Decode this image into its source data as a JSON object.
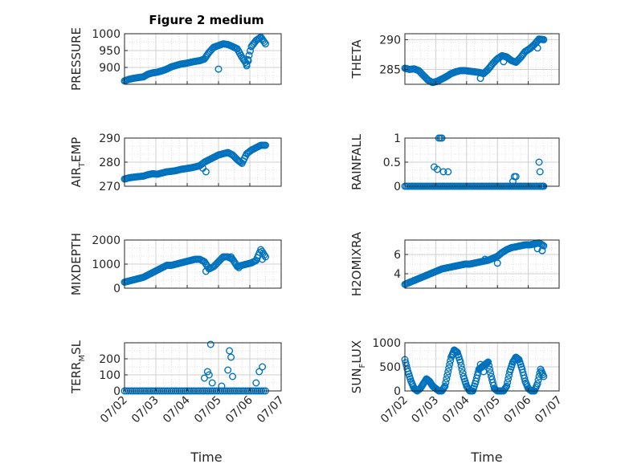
{
  "figure_title": "Figure 2 medium",
  "x_axis_label": "Time",
  "x_tick_labels": [
    "07/02",
    "07/03",
    "07/04",
    "07/05",
    "07/06",
    "07/07"
  ],
  "colors": {
    "marker": "#0072BD",
    "axis": "#262626",
    "grid": "#d9d9d9"
  },
  "chart_data": [
    {
      "type": "scatter",
      "title": "Figure 2 medium",
      "ylabel": "PRESSURE",
      "ylim": [
        850,
        1000
      ],
      "yticks": [
        900,
        950,
        1000
      ],
      "xticks": [
        0,
        1,
        2,
        3,
        4,
        5
      ],
      "grid": true,
      "x": [
        0.0,
        0.15,
        0.3,
        0.45,
        0.6,
        0.75,
        0.9,
        1.05,
        1.2,
        1.35,
        1.5,
        1.65,
        1.8,
        1.95,
        2.1,
        2.25,
        2.4,
        2.55,
        2.7,
        2.85,
        3.0,
        3.15,
        3.3,
        3.45,
        3.6,
        3.75,
        3.9,
        4.05,
        4.2,
        4.35,
        4.5
      ],
      "y": [
        860,
        865,
        868,
        870,
        872,
        880,
        884,
        886,
        890,
        895,
        902,
        906,
        910,
        912,
        915,
        918,
        920,
        925,
        945,
        960,
        965,
        970,
        968,
        962,
        955,
        930,
        910,
        962,
        980,
        990,
        970
      ],
      "y_dev": [
        {
          "x": 3.0,
          "y": 895
        },
        {
          "x": 3.9,
          "y": 905
        },
        {
          "x": 3.95,
          "y": 920
        }
      ]
    },
    {
      "type": "scatter",
      "title": "",
      "ylabel": "THETA",
      "ylim": [
        282.5,
        291
      ],
      "yticks": [
        285,
        290
      ],
      "xticks": [
        0,
        1,
        2,
        3,
        4,
        5
      ],
      "grid": true,
      "x": [
        0.0,
        0.15,
        0.3,
        0.45,
        0.6,
        0.75,
        0.9,
        1.05,
        1.2,
        1.35,
        1.5,
        1.65,
        1.8,
        1.95,
        2.1,
        2.25,
        2.4,
        2.55,
        2.7,
        2.85,
        3.0,
        3.15,
        3.3,
        3.45,
        3.6,
        3.75,
        3.9,
        4.05,
        4.2,
        4.35,
        4.5
      ],
      "y": [
        285.2,
        285.0,
        285.1,
        284.8,
        284.0,
        283.2,
        282.8,
        283.0,
        283.4,
        283.8,
        284.3,
        284.6,
        284.8,
        284.8,
        284.7,
        284.6,
        284.5,
        284.3,
        285.0,
        286.0,
        286.8,
        287.3,
        287.1,
        286.5,
        286.2,
        287.0,
        288.0,
        288.5,
        289.2,
        290.1,
        290.0
      ],
      "y_dev": [
        {
          "x": 2.45,
          "y": 283.5
        },
        {
          "x": 3.2,
          "y": 286.3
        },
        {
          "x": 4.3,
          "y": 288.6
        }
      ]
    },
    {
      "type": "scatter",
      "title": "",
      "ylabel": "AIR_TEMP",
      "ylim": [
        270,
        290
      ],
      "yticks": [
        270,
        280,
        290
      ],
      "xticks": [
        0,
        1,
        2,
        3,
        4,
        5
      ],
      "grid": true,
      "x": [
        0.0,
        0.15,
        0.3,
        0.45,
        0.6,
        0.75,
        0.9,
        1.05,
        1.2,
        1.35,
        1.5,
        1.65,
        1.8,
        1.95,
        2.1,
        2.25,
        2.4,
        2.55,
        2.7,
        2.85,
        3.0,
        3.15,
        3.3,
        3.45,
        3.6,
        3.75,
        3.9,
        4.05,
        4.2,
        4.35,
        4.5
      ],
      "y": [
        273,
        273.5,
        273.8,
        274,
        274.2,
        274.8,
        275.2,
        275.0,
        275.5,
        276.0,
        276.2,
        276.5,
        277.0,
        277.3,
        277.6,
        278.0,
        278.5,
        280.0,
        281.0,
        282.0,
        283.0,
        283.5,
        284.0,
        283.0,
        281.0,
        279.5,
        283.5,
        285.0,
        286.0,
        287.0,
        287.0
      ],
      "y_dev": [
        {
          "x": 2.5,
          "y": 277.5
        },
        {
          "x": 2.6,
          "y": 276.0
        },
        {
          "x": 3.65,
          "y": 280.5
        }
      ]
    },
    {
      "type": "scatter",
      "title": "",
      "ylabel": "RAINFALL",
      "ylim": [
        0,
        1
      ],
      "yticks": [
        0,
        0.5,
        1
      ],
      "xticks": [
        0,
        1,
        2,
        3,
        4,
        5
      ],
      "grid": true,
      "x": [
        0.0,
        0.2,
        0.4,
        0.6,
        0.8,
        1.0,
        1.2,
        1.4,
        1.6,
        1.8,
        2.0,
        2.2,
        2.4,
        2.6,
        2.8,
        3.0,
        3.2,
        3.4,
        3.6,
        3.8,
        4.0,
        4.2,
        4.4,
        4.5
      ],
      "y": [
        0,
        0,
        0,
        0,
        0,
        0,
        0,
        0,
        0,
        0,
        0,
        0,
        0,
        0,
        0,
        0,
        0,
        0,
        0,
        0,
        0,
        0,
        0,
        0
      ],
      "y_dev": [
        {
          "x": 0.95,
          "y": 0.4
        },
        {
          "x": 1.05,
          "y": 0.35
        },
        {
          "x": 1.1,
          "y": 1.0
        },
        {
          "x": 1.15,
          "y": 1.0
        },
        {
          "x": 1.2,
          "y": 1.0
        },
        {
          "x": 1.25,
          "y": 0.3
        },
        {
          "x": 1.4,
          "y": 0.3
        },
        {
          "x": 3.5,
          "y": 0.1
        },
        {
          "x": 3.55,
          "y": 0.2
        },
        {
          "x": 3.6,
          "y": 0.2
        },
        {
          "x": 4.35,
          "y": 0.5
        },
        {
          "x": 4.38,
          "y": 0.3
        }
      ]
    },
    {
      "type": "scatter",
      "title": "",
      "ylabel": "MIXDEPTH",
      "ylim": [
        0,
        2000
      ],
      "yticks": [
        0,
        1000,
        2000
      ],
      "xticks": [
        0,
        1,
        2,
        3,
        4,
        5
      ],
      "grid": true,
      "x": [
        0.0,
        0.15,
        0.3,
        0.45,
        0.6,
        0.75,
        0.9,
        1.05,
        1.2,
        1.35,
        1.5,
        1.65,
        1.8,
        1.95,
        2.1,
        2.25,
        2.4,
        2.55,
        2.7,
        2.85,
        3.0,
        3.15,
        3.3,
        3.45,
        3.6,
        3.75,
        3.9,
        4.05,
        4.2,
        4.35,
        4.5
      ],
      "y": [
        250,
        300,
        350,
        400,
        450,
        550,
        650,
        750,
        850,
        950,
        950,
        1000,
        1050,
        1100,
        1150,
        1200,
        1200,
        1100,
        800,
        900,
        1100,
        1300,
        1300,
        1200,
        900,
        950,
        1000,
        1050,
        1150,
        1600,
        1300
      ],
      "y_dev": [
        {
          "x": 2.6,
          "y": 700
        },
        {
          "x": 3.4,
          "y": 1300
        },
        {
          "x": 3.65,
          "y": 850
        },
        {
          "x": 4.4,
          "y": 1200
        }
      ]
    },
    {
      "type": "scatter",
      "title": "",
      "ylabel": "H2OMIXRA",
      "ylim": [
        2.5,
        7.5
      ],
      "yticks": [
        4,
        6
      ],
      "xticks": [
        0,
        1,
        2,
        3,
        4,
        5
      ],
      "grid": true,
      "x": [
        0.0,
        0.15,
        0.3,
        0.45,
        0.6,
        0.75,
        0.9,
        1.05,
        1.2,
        1.35,
        1.5,
        1.65,
        1.8,
        1.95,
        2.1,
        2.25,
        2.4,
        2.55,
        2.7,
        2.85,
        3.0,
        3.15,
        3.3,
        3.45,
        3.6,
        3.75,
        3.9,
        4.05,
        4.2,
        4.35,
        4.5
      ],
      "y": [
        2.9,
        3.1,
        3.3,
        3.5,
        3.7,
        3.9,
        4.1,
        4.3,
        4.5,
        4.6,
        4.7,
        4.8,
        4.9,
        5.0,
        5.0,
        5.1,
        5.2,
        5.3,
        5.4,
        5.6,
        5.8,
        6.2,
        6.5,
        6.7,
        6.8,
        6.9,
        7.0,
        7.0,
        7.1,
        7.2,
        6.9
      ],
      "y_dev": [
        {
          "x": 2.6,
          "y": 5.5
        },
        {
          "x": 3.0,
          "y": 5.1
        },
        {
          "x": 4.3,
          "y": 6.6
        },
        {
          "x": 4.45,
          "y": 6.4
        }
      ]
    },
    {
      "type": "scatter",
      "title": "",
      "ylabel": "TERR_MSL",
      "ylim": [
        0,
        300
      ],
      "yticks": [
        0,
        100,
        200
      ],
      "xticks": [
        0,
        1,
        2,
        3,
        4,
        5
      ],
      "grid": true,
      "x": [
        0.0,
        0.25,
        0.5,
        0.75,
        1.0,
        1.25,
        1.5,
        1.75,
        2.0,
        2.25,
        2.5,
        2.75,
        3.0,
        3.25,
        3.5,
        3.75,
        4.0,
        4.25,
        4.5
      ],
      "y": [
        0,
        0,
        0,
        0,
        0,
        0,
        0,
        0,
        0,
        0,
        0,
        0,
        0,
        0,
        0,
        0,
        0,
        0,
        0
      ],
      "y_dev": [
        {
          "x": 2.55,
          "y": 80
        },
        {
          "x": 2.65,
          "y": 120
        },
        {
          "x": 2.7,
          "y": 100
        },
        {
          "x": 2.75,
          "y": 290
        },
        {
          "x": 2.8,
          "y": 50
        },
        {
          "x": 3.1,
          "y": 30
        },
        {
          "x": 3.3,
          "y": 130
        },
        {
          "x": 3.35,
          "y": 250
        },
        {
          "x": 3.4,
          "y": 210
        },
        {
          "x": 3.45,
          "y": 90
        },
        {
          "x": 4.2,
          "y": 50
        },
        {
          "x": 4.3,
          "y": 120
        },
        {
          "x": 4.4,
          "y": 150
        }
      ]
    },
    {
      "type": "scatter",
      "title": "",
      "ylabel": "SUN_FLUX",
      "ylim": [
        0,
        1000
      ],
      "yticks": [
        0,
        500,
        1000
      ],
      "xticks": [
        0,
        1,
        2,
        3,
        4,
        5
      ],
      "grid": true,
      "x": [
        0.0,
        0.1,
        0.2,
        0.3,
        0.4,
        0.5,
        0.6,
        0.7,
        0.8,
        0.9,
        1.0,
        1.1,
        1.2,
        1.3,
        1.4,
        1.5,
        1.6,
        1.7,
        1.8,
        1.9,
        2.0,
        2.1,
        2.2,
        2.3,
        2.4,
        2.5,
        2.6,
        2.7,
        2.8,
        2.9,
        3.0,
        3.1,
        3.2,
        3.3,
        3.4,
        3.5,
        3.6,
        3.7,
        3.8,
        3.9,
        4.0,
        4.1,
        4.2,
        4.3,
        4.4,
        4.5
      ],
      "y": [
        650,
        400,
        200,
        50,
        0,
        50,
        150,
        250,
        200,
        100,
        50,
        0,
        0,
        100,
        400,
        700,
        850,
        800,
        600,
        300,
        100,
        0,
        0,
        200,
        450,
        500,
        550,
        600,
        300,
        50,
        0,
        0,
        0,
        100,
        400,
        600,
        700,
        650,
        450,
        200,
        50,
        0,
        0,
        150,
        450,
        300
      ],
      "y_dev": [
        {
          "x": 1.55,
          "y": 750
        },
        {
          "x": 2.45,
          "y": 550
        },
        {
          "x": 2.55,
          "y": 400
        }
      ]
    }
  ],
  "panels": [
    {
      "ylabel_main": "PRESSURE",
      "ylabel_sub": "",
      "ylabel_tail": ""
    },
    {
      "ylabel_main": "THETA",
      "ylabel_sub": "",
      "ylabel_tail": ""
    },
    {
      "ylabel_main": "AIR",
      "ylabel_sub": "T",
      "ylabel_tail": "EMP"
    },
    {
      "ylabel_main": "RAINFALL",
      "ylabel_sub": "",
      "ylabel_tail": ""
    },
    {
      "ylabel_main": "MIXDEPTH",
      "ylabel_sub": "",
      "ylabel_tail": ""
    },
    {
      "ylabel_main": "H2OMIXRA",
      "ylabel_sub": "",
      "ylabel_tail": ""
    },
    {
      "ylabel_main": "TERR",
      "ylabel_sub": "M",
      "ylabel_tail": "SL"
    },
    {
      "ylabel_main": "SUN",
      "ylabel_sub": "F",
      "ylabel_tail": "LUX"
    }
  ],
  "y_tick_labels": [
    [
      "900",
      "950",
      "1000"
    ],
    [
      "285",
      "290"
    ],
    [
      "270",
      "280",
      "290"
    ],
    [
      "0",
      "0.5",
      "1"
    ],
    [
      "0",
      "1000",
      "2000"
    ],
    [
      "4",
      "6"
    ],
    [
      "0",
      "100",
      "200"
    ],
    [
      "0",
      "500",
      "1000"
    ]
  ]
}
